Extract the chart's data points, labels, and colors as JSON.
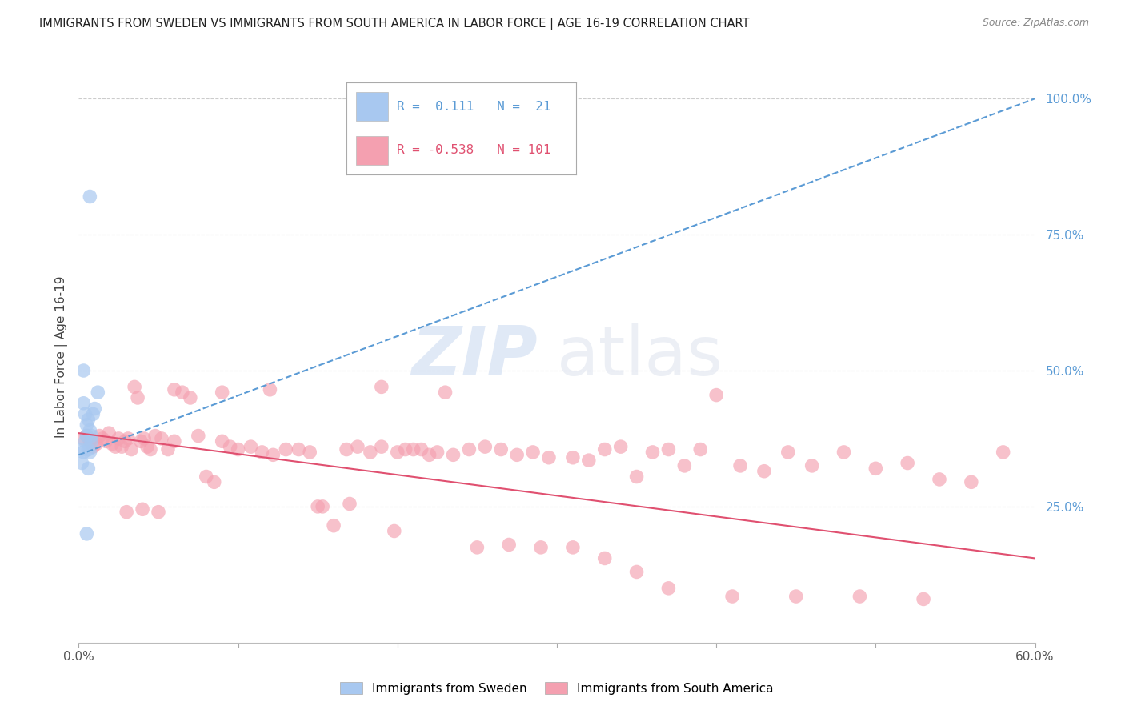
{
  "title": "IMMIGRANTS FROM SWEDEN VS IMMIGRANTS FROM SOUTH AMERICA IN LABOR FORCE | AGE 16-19 CORRELATION CHART",
  "source": "Source: ZipAtlas.com",
  "ylabel": "In Labor Force | Age 16-19",
  "xlim": [
    0.0,
    0.6
  ],
  "ylim": [
    0.0,
    1.05
  ],
  "legend_r_sweden": "0.111",
  "legend_n_sweden": "21",
  "legend_r_sa": "-0.538",
  "legend_n_sa": "101",
  "sweden_color": "#a8c8f0",
  "sa_color": "#f4a0b0",
  "sweden_line_color": "#5b9bd5",
  "sa_line_color": "#e05070",
  "watermark_zip": "ZIP",
  "watermark_atlas": "atlas",
  "grid_color": "#cccccc",
  "right_tick_color": "#5b9bd5",
  "title_color": "#222222",
  "source_color": "#888888",
  "sweden_x": [
    0.002,
    0.003,
    0.004,
    0.005,
    0.006,
    0.007,
    0.008,
    0.009,
    0.01,
    0.012,
    0.003,
    0.004,
    0.005,
    0.006,
    0.007,
    0.003,
    0.005,
    0.007,
    0.008,
    0.006,
    0.002
  ],
  "sweden_y": [
    0.355,
    0.44,
    0.37,
    0.4,
    0.41,
    0.39,
    0.38,
    0.42,
    0.43,
    0.46,
    0.5,
    0.42,
    0.38,
    0.355,
    0.35,
    0.35,
    0.2,
    0.82,
    0.37,
    0.32,
    0.33
  ],
  "sa_x": [
    0.003,
    0.005,
    0.007,
    0.009,
    0.011,
    0.013,
    0.015,
    0.017,
    0.019,
    0.021,
    0.023,
    0.025,
    0.027,
    0.029,
    0.031,
    0.033,
    0.035,
    0.037,
    0.039,
    0.041,
    0.043,
    0.045,
    0.048,
    0.052,
    0.056,
    0.06,
    0.065,
    0.07,
    0.075,
    0.08,
    0.085,
    0.09,
    0.095,
    0.1,
    0.108,
    0.115,
    0.122,
    0.13,
    0.138,
    0.145,
    0.153,
    0.16,
    0.168,
    0.175,
    0.183,
    0.19,
    0.198,
    0.205,
    0.215,
    0.225,
    0.235,
    0.245,
    0.255,
    0.265,
    0.275,
    0.285,
    0.295,
    0.31,
    0.32,
    0.33,
    0.34,
    0.35,
    0.36,
    0.37,
    0.38,
    0.39,
    0.19,
    0.21,
    0.23,
    0.4,
    0.415,
    0.43,
    0.445,
    0.46,
    0.48,
    0.5,
    0.52,
    0.54,
    0.56,
    0.58,
    0.06,
    0.09,
    0.12,
    0.15,
    0.17,
    0.2,
    0.22,
    0.05,
    0.04,
    0.03,
    0.25,
    0.27,
    0.29,
    0.31,
    0.33,
    0.35,
    0.37,
    0.41,
    0.45,
    0.49,
    0.53
  ],
  "sa_y": [
    0.375,
    0.38,
    0.37,
    0.36,
    0.365,
    0.38,
    0.375,
    0.37,
    0.385,
    0.365,
    0.36,
    0.375,
    0.36,
    0.37,
    0.375,
    0.355,
    0.47,
    0.45,
    0.37,
    0.375,
    0.36,
    0.355,
    0.38,
    0.375,
    0.355,
    0.37,
    0.46,
    0.45,
    0.38,
    0.305,
    0.295,
    0.37,
    0.36,
    0.355,
    0.36,
    0.35,
    0.345,
    0.355,
    0.355,
    0.35,
    0.25,
    0.215,
    0.355,
    0.36,
    0.35,
    0.36,
    0.205,
    0.355,
    0.355,
    0.35,
    0.345,
    0.355,
    0.36,
    0.355,
    0.345,
    0.35,
    0.34,
    0.34,
    0.335,
    0.355,
    0.36,
    0.305,
    0.35,
    0.355,
    0.325,
    0.355,
    0.47,
    0.355,
    0.46,
    0.455,
    0.325,
    0.315,
    0.35,
    0.325,
    0.35,
    0.32,
    0.33,
    0.3,
    0.295,
    0.35,
    0.465,
    0.46,
    0.465,
    0.25,
    0.255,
    0.35,
    0.345,
    0.24,
    0.245,
    0.24,
    0.175,
    0.18,
    0.175,
    0.175,
    0.155,
    0.13,
    0.1,
    0.085,
    0.085,
    0.085,
    0.08
  ]
}
